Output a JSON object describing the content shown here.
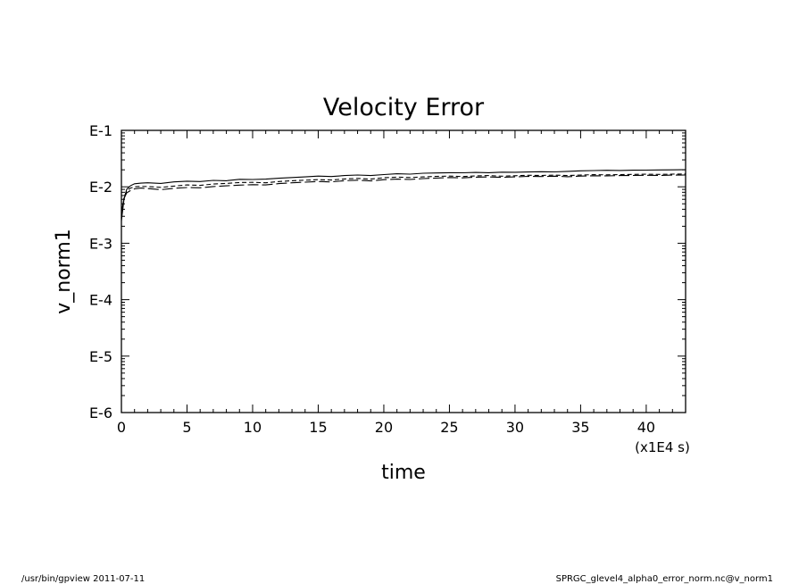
{
  "chart_data": {
    "type": "line",
    "title": "Velocity Error",
    "xlabel": "time",
    "ylabel": "v_norm1",
    "x_unit_label": "(x1E4 s)",
    "xlim": [
      0,
      43
    ],
    "ylim": [
      1e-06,
      0.1
    ],
    "y_scale": "log",
    "x_ticks": [
      "0",
      "5",
      "10",
      "15",
      "20",
      "25",
      "30",
      "35",
      "40"
    ],
    "y_ticks": [
      "E-1",
      "E-2",
      "E-3",
      "E-4",
      "E-5",
      "E-6"
    ],
    "grid": false,
    "series": [
      {
        "style": "solid",
        "x": [
          0,
          0.2,
          0.4,
          0.7,
          1,
          1.5,
          2,
          3,
          4,
          5,
          6,
          7,
          8,
          9,
          10,
          11,
          12,
          13,
          14,
          15,
          16,
          17,
          18,
          19,
          20,
          21,
          22,
          23,
          24,
          25,
          26,
          27,
          28,
          29,
          30,
          31,
          32,
          33,
          34,
          35,
          36,
          37,
          38,
          39,
          40,
          41,
          42,
          43
        ],
        "y": [
          0.0025,
          0.006,
          0.009,
          0.0105,
          0.0113,
          0.0116,
          0.0118,
          0.0115,
          0.0122,
          0.0126,
          0.0124,
          0.013,
          0.0128,
          0.0136,
          0.0135,
          0.0137,
          0.0142,
          0.0146,
          0.015,
          0.0155,
          0.0152,
          0.0158,
          0.0162,
          0.0158,
          0.0165,
          0.017,
          0.0168,
          0.0174,
          0.0176,
          0.0178,
          0.0177,
          0.018,
          0.0178,
          0.0182,
          0.0181,
          0.0183,
          0.0185,
          0.0184,
          0.0188,
          0.0192,
          0.0194,
          0.0196,
          0.0195,
          0.0197,
          0.0198,
          0.0199,
          0.02,
          0.0201
        ]
      },
      {
        "style": "dashed",
        "x": [
          0,
          0.2,
          0.4,
          0.7,
          1,
          1.5,
          2,
          3,
          4,
          5,
          6,
          7,
          8,
          9,
          10,
          11,
          12,
          13,
          14,
          15,
          16,
          17,
          18,
          19,
          20,
          21,
          22,
          23,
          24,
          25,
          26,
          27,
          28,
          29,
          30,
          31,
          32,
          33,
          34,
          35,
          36,
          37,
          38,
          39,
          40,
          41,
          42,
          43
        ],
        "y": [
          0.003,
          0.0065,
          0.0085,
          0.0095,
          0.01,
          0.0102,
          0.0101,
          0.0098,
          0.0103,
          0.0108,
          0.0106,
          0.0112,
          0.0115,
          0.0119,
          0.012,
          0.0118,
          0.0124,
          0.0128,
          0.0131,
          0.0134,
          0.0132,
          0.0138,
          0.0141,
          0.0137,
          0.0145,
          0.0148,
          0.0146,
          0.015,
          0.0153,
          0.0155,
          0.0152,
          0.0156,
          0.0158,
          0.0154,
          0.0157,
          0.016,
          0.0159,
          0.0161,
          0.0158,
          0.0162,
          0.0164,
          0.0163,
          0.0165,
          0.0166,
          0.0167,
          0.0166,
          0.0168,
          0.0169
        ]
      },
      {
        "style": "long-dash",
        "x": [
          0,
          0.2,
          0.4,
          0.7,
          1,
          1.5,
          2,
          3,
          4,
          5,
          6,
          7,
          8,
          9,
          10,
          11,
          12,
          13,
          14,
          15,
          16,
          17,
          18,
          19,
          20,
          21,
          22,
          23,
          24,
          25,
          26,
          27,
          28,
          29,
          30,
          31,
          32,
          33,
          34,
          35,
          36,
          37,
          38,
          39,
          40,
          41,
          42,
          43
        ],
        "y": [
          0.0035,
          0.0062,
          0.0078,
          0.0086,
          0.0092,
          0.0095,
          0.0093,
          0.0089,
          0.0094,
          0.0097,
          0.0096,
          0.0101,
          0.0104,
          0.0107,
          0.0109,
          0.0108,
          0.0114,
          0.0118,
          0.0121,
          0.0124,
          0.0122,
          0.0128,
          0.0131,
          0.0127,
          0.0134,
          0.0137,
          0.0135,
          0.014,
          0.0143,
          0.0146,
          0.0144,
          0.0148,
          0.015,
          0.0147,
          0.015,
          0.0153,
          0.0152,
          0.0154,
          0.0151,
          0.0155,
          0.0157,
          0.0156,
          0.0158,
          0.0159,
          0.016,
          0.0159,
          0.0161,
          0.0162
        ]
      }
    ]
  },
  "footer": {
    "left": "/usr/bin/gpview   2011-07-11",
    "right": "SPRGC_glevel4_alpha0_error_norm.nc@v_norm1"
  }
}
